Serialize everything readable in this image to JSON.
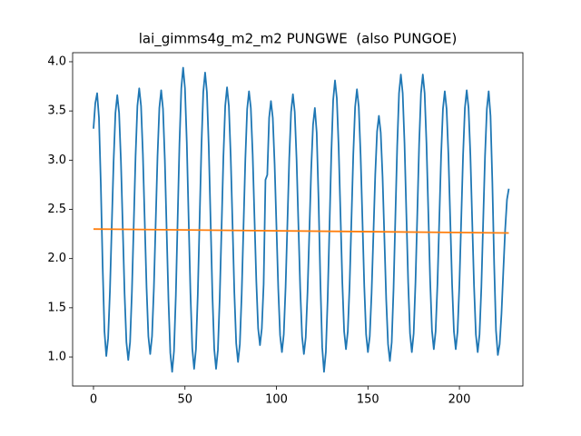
{
  "chart_data": {
    "type": "line",
    "title": "lai_gimms4g_m2_m2 PUNGWE  (also PUNGOE)",
    "xlim": [
      -11.4,
      234.7
    ],
    "xticks": [
      0,
      50,
      100,
      150,
      200
    ],
    "ylim": [
      0.705,
      4.092
    ],
    "yticks": [
      {
        "value": 1,
        "label": "1.0"
      },
      1.5,
      {
        "value": 2,
        "label": "2.0"
      },
      2.5,
      {
        "value": 3,
        "label": "3.0"
      },
      3.5,
      {
        "value": 4,
        "label": "4.0"
      }
    ],
    "grid": false,
    "series": [
      {
        "color": "#1f77b4",
        "x": [
          0,
          1,
          2,
          3,
          4,
          5,
          6,
          7,
          8,
          9,
          10,
          11,
          12,
          13,
          14,
          15,
          16,
          17,
          18,
          19,
          20,
          21,
          22,
          23,
          24,
          25,
          26,
          27,
          28,
          29,
          30,
          31,
          32,
          33,
          34,
          35,
          36,
          37,
          38,
          39,
          40,
          41,
          42,
          43,
          44,
          45,
          46,
          47,
          48,
          49,
          50,
          51,
          52,
          53,
          54,
          55,
          56,
          57,
          58,
          59,
          60,
          61,
          62,
          63,
          64,
          65,
          66,
          67,
          68,
          69,
          70,
          71,
          72,
          73,
          74,
          75,
          76,
          77,
          78,
          79,
          80,
          81,
          82,
          83,
          84,
          85,
          86,
          87,
          88,
          89,
          90,
          91,
          92,
          93,
          94,
          95,
          96,
          97,
          98,
          99,
          100,
          101,
          102,
          103,
          104,
          105,
          106,
          107,
          108,
          109,
          110,
          111,
          112,
          113,
          114,
          115,
          116,
          117,
          118,
          119,
          120,
          121,
          122,
          123,
          124,
          125,
          126,
          127,
          128,
          129,
          130,
          131,
          132,
          133,
          134,
          135,
          136,
          137,
          138,
          139,
          140,
          141,
          142,
          143,
          144,
          145,
          146,
          147,
          148,
          149,
          150,
          151,
          152,
          153,
          154,
          155,
          156,
          157,
          158,
          159,
          160,
          161,
          162,
          163,
          164,
          165,
          166,
          167,
          168,
          169,
          170,
          171,
          172,
          173,
          174,
          175,
          176,
          177,
          178,
          179,
          180,
          181,
          182,
          183,
          184,
          185,
          186,
          187,
          188,
          189,
          190,
          191,
          192,
          193,
          194,
          195,
          196,
          197,
          198,
          199,
          200,
          201,
          202,
          203,
          204,
          205,
          206,
          207,
          208,
          209,
          210,
          211,
          212,
          213,
          214,
          215,
          216,
          217,
          218,
          219,
          220,
          221,
          222,
          223,
          224,
          225,
          226,
          227
        ],
        "values": [
          3.32,
          3.58,
          3.68,
          3.43,
          2.76,
          1.93,
          1.26,
          1.01,
          1.19,
          1.67,
          2.34,
          2.99,
          3.48,
          3.66,
          3.48,
          2.99,
          2.32,
          1.64,
          1.15,
          0.97,
          1.15,
          1.66,
          2.35,
          3.04,
          3.55,
          3.73,
          3.55,
          3.06,
          2.38,
          1.71,
          1.21,
          1.03,
          1.21,
          1.7,
          2.37,
          3.04,
          3.53,
          3.71,
          3.52,
          3.0,
          2.28,
          1.57,
          1.04,
          0.85,
          1.06,
          1.62,
          2.4,
          3.17,
          3.73,
          3.94,
          3.73,
          3.18,
          2.41,
          1.65,
          1.09,
          0.88,
          1.08,
          1.63,
          2.39,
          3.14,
          3.69,
          3.89,
          3.69,
          3.14,
          2.39,
          1.63,
          1.08,
          0.88,
          1.07,
          1.6,
          2.31,
          3.03,
          3.55,
          3.74,
          3.55,
          3.04,
          2.35,
          1.65,
          1.14,
          0.95,
          1.13,
          1.64,
          2.33,
          3.01,
          3.52,
          3.7,
          3.53,
          3.06,
          2.41,
          1.77,
          1.29,
          1.12,
          1.29,
          1.74,
          2.8,
          2.85,
          3.43,
          3.6,
          3.43,
          2.96,
          2.33,
          1.69,
          1.22,
          1.05,
          1.23,
          1.71,
          2.36,
          3.02,
          3.49,
          3.67,
          3.49,
          3.01,
          2.35,
          1.69,
          1.21,
          1.03,
          1.2,
          1.66,
          2.28,
          2.91,
          3.36,
          3.53,
          3.28,
          2.61,
          1.77,
          1.1,
          0.85,
          1.05,
          1.59,
          2.33,
          3.07,
          3.61,
          3.81,
          3.63,
          3.13,
          2.45,
          1.76,
          1.26,
          1.08,
          1.26,
          1.74,
          2.4,
          3.06,
          3.54,
          3.72,
          3.54,
          3.05,
          2.39,
          1.72,
          1.23,
          1.05,
          1.21,
          1.65,
          2.25,
          2.85,
          3.29,
          3.45,
          3.28,
          2.83,
          2.21,
          1.58,
          1.13,
          0.96,
          1.15,
          1.69,
          2.42,
          3.14,
          3.68,
          3.87,
          3.68,
          3.17,
          2.46,
          1.76,
          1.24,
          1.05,
          1.24,
          1.76,
          2.46,
          3.17,
          3.68,
          3.87,
          3.68,
          3.17,
          2.48,
          1.78,
          1.27,
          1.08,
          1.26,
          1.74,
          2.39,
          3.05,
          3.52,
          3.7,
          3.52,
          3.05,
          2.39,
          1.74,
          1.26,
          1.08,
          1.26,
          1.74,
          2.4,
          3.05,
          3.53,
          3.71,
          3.53,
          3.05,
          2.38,
          1.72,
          1.23,
          1.05,
          1.23,
          1.71,
          2.38,
          3.04,
          3.52,
          3.7,
          3.45,
          2.78,
          1.94,
          1.27,
          1.02,
          1.13,
          1.44,
          1.87,
          2.29,
          2.6,
          2.71
        ]
      },
      {
        "color": "#ff7f0e",
        "x": [
          0,
          227
        ],
        "values": [
          2.3,
          2.26
        ]
      }
    ]
  }
}
